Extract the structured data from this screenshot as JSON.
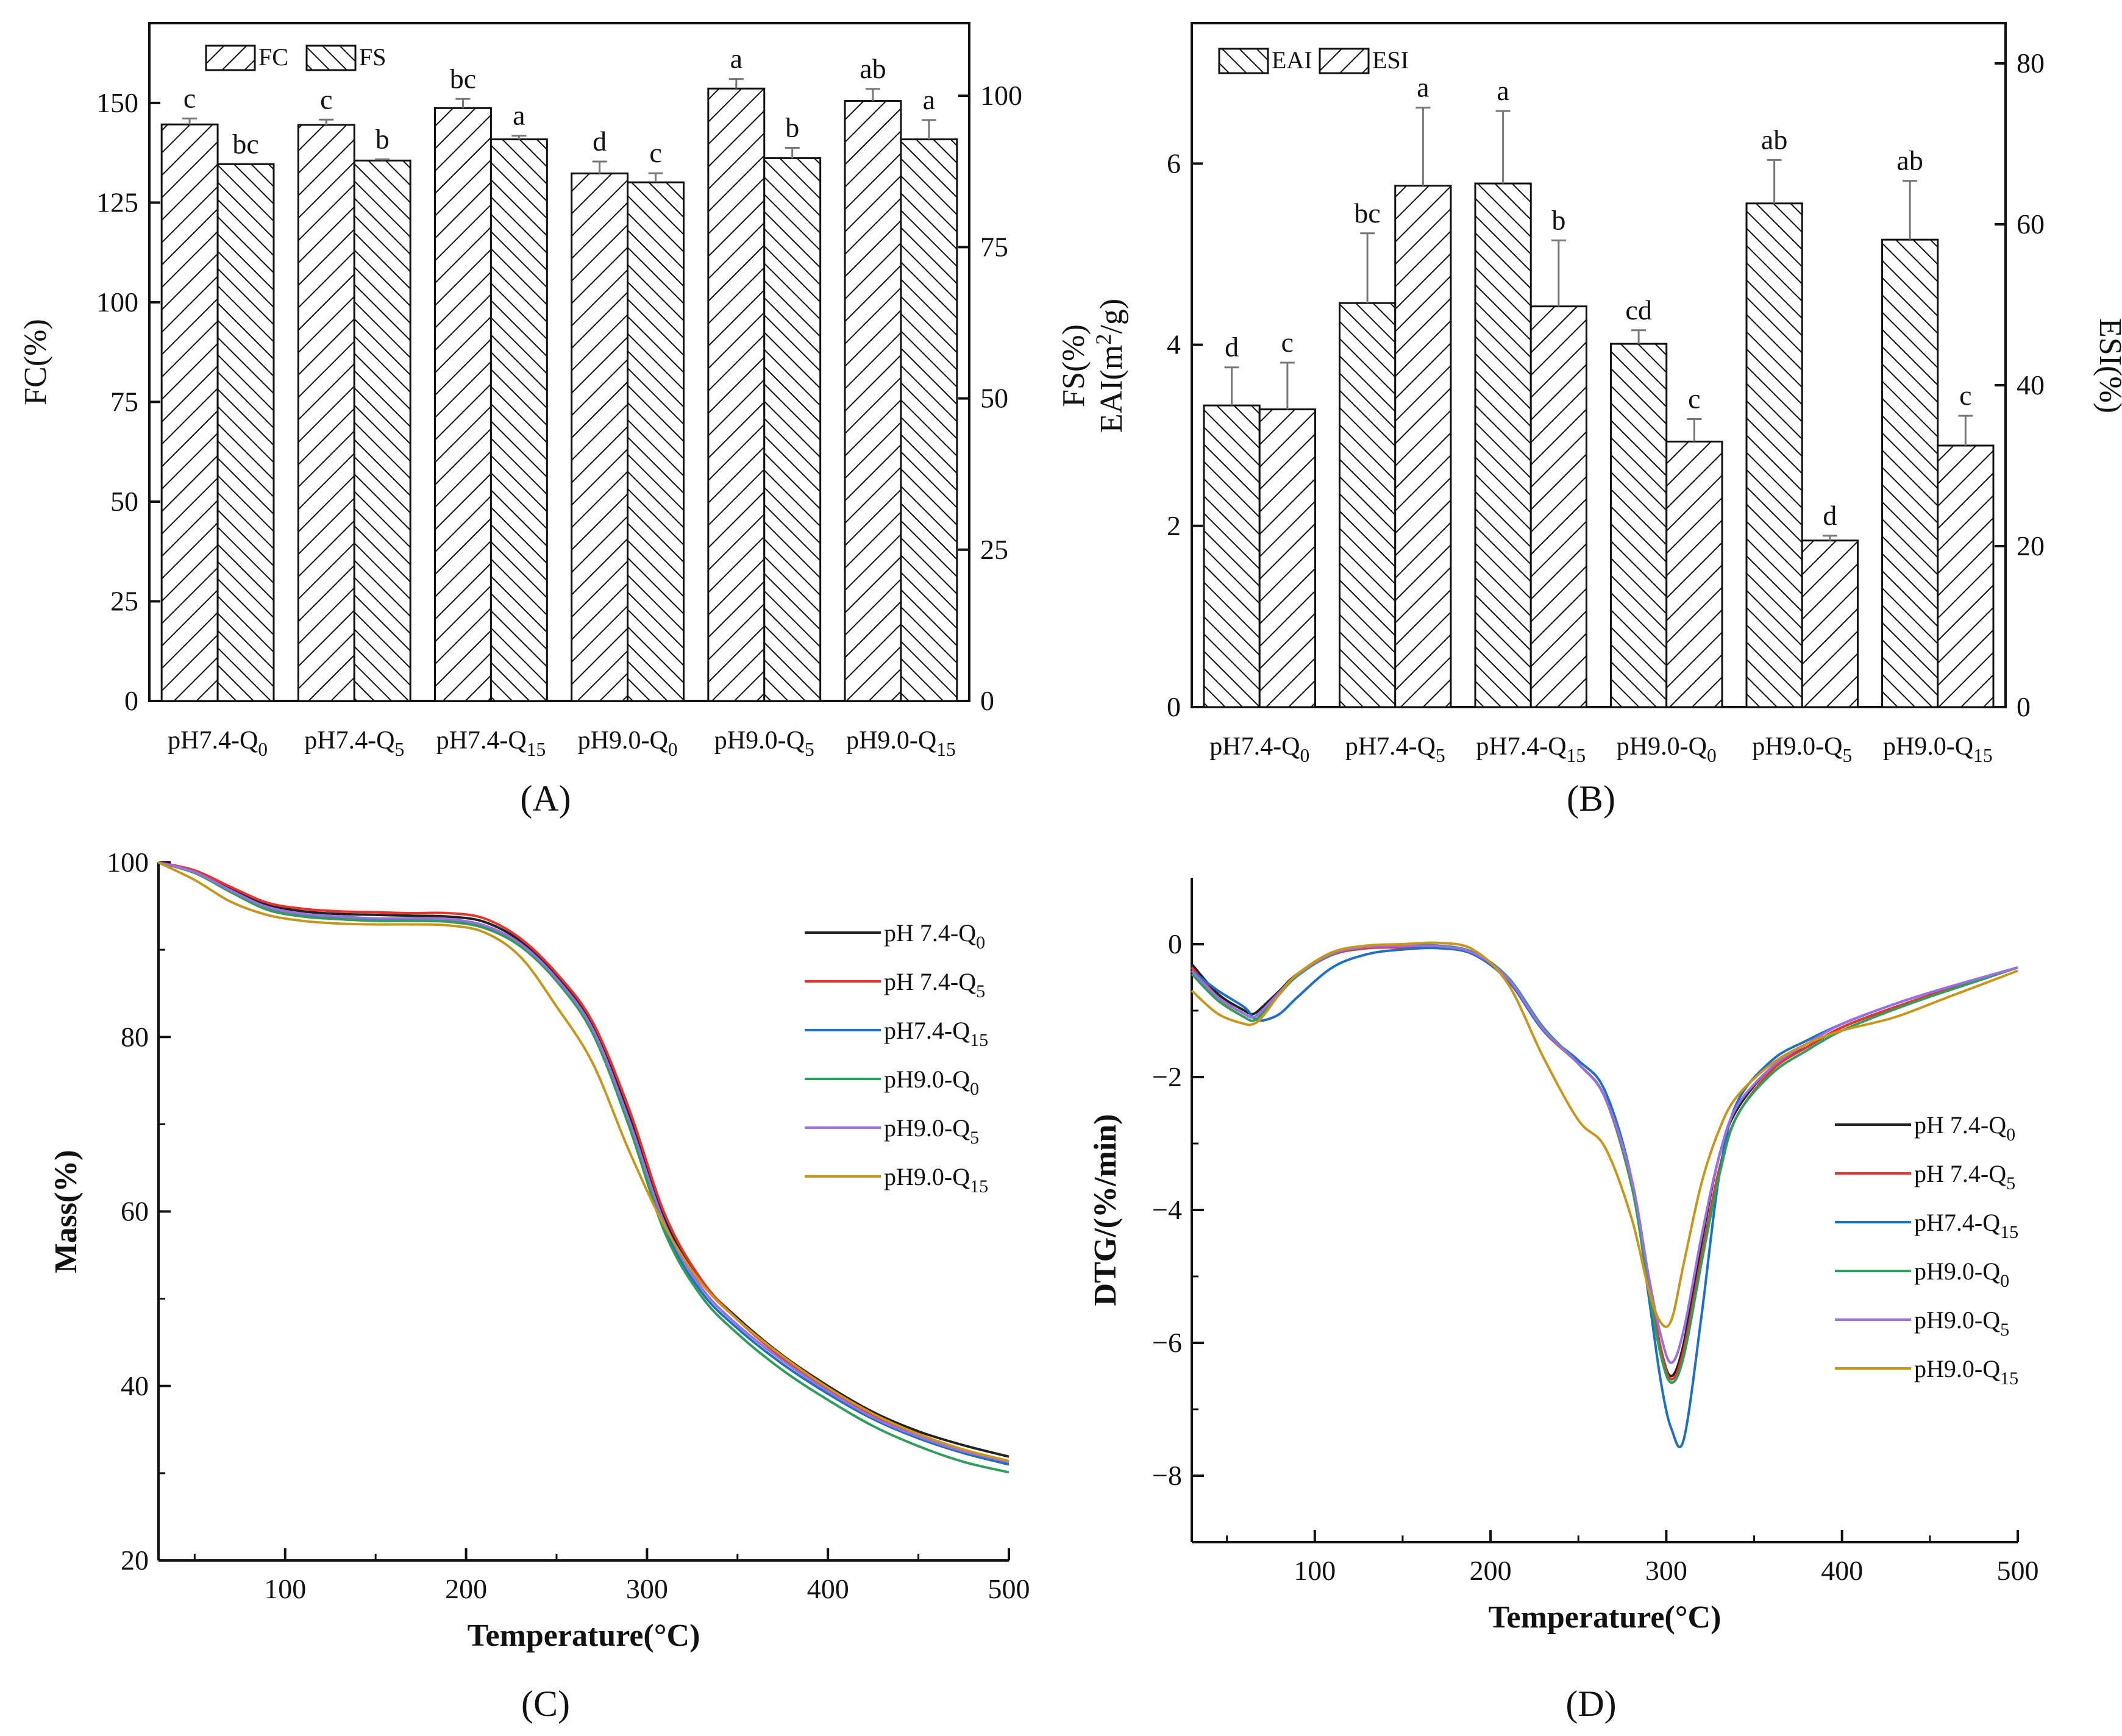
{
  "colors": {
    "series": [
      "#222222",
      "#e8322e",
      "#1f6fc2",
      "#2e9e5b",
      "#9b6fe0",
      "#c8961a"
    ],
    "axis": "#111111"
  },
  "panels": [
    {
      "label": "(A)"
    },
    {
      "label": "(B)"
    },
    {
      "label": "(C)"
    },
    {
      "label": "(D)"
    }
  ],
  "chart_data": [
    {
      "type": "bar",
      "panel": "A",
      "categories": [
        {
          "main": "pH7.4-Q",
          "sub": "0"
        },
        {
          "main": "pH7.4-Q",
          "sub": "5"
        },
        {
          "main": "pH7.4-Q",
          "sub": "15"
        },
        {
          "main": "pH9.0-Q",
          "sub": "0"
        },
        {
          "main": "pH9.0-Q",
          "sub": "5"
        },
        {
          "main": "pH9.0-Q",
          "sub": "15"
        }
      ],
      "ylabel_left": "FC(%)",
      "ylabel_right": "FS(%)",
      "ylim_left": [
        0,
        170
      ],
      "ylim_right": [
        0,
        112
      ],
      "yticks_left": [
        0,
        25,
        50,
        75,
        100,
        125,
        150
      ],
      "yticks_right": [
        0,
        25,
        50,
        75,
        100
      ],
      "legend": [
        "FC",
        "FS"
      ],
      "series": [
        {
          "name": "FC",
          "axis": "left",
          "hatch": "diag-up",
          "values": [
            144.6,
            144.5,
            148.7,
            132.3,
            153.6,
            150.5
          ],
          "errors": [
            1.5,
            1.3,
            2.3,
            3.0,
            2.4,
            3.0
          ],
          "letters": [
            "c",
            "c",
            "bc",
            "d",
            "a",
            "ab"
          ]
        },
        {
          "name": "FS",
          "axis": "right",
          "hatch": "diag-down",
          "values": [
            88.7,
            89.3,
            92.8,
            85.7,
            89.7,
            92.8
          ],
          "errors": [
            0.0,
            0.2,
            0.6,
            1.5,
            1.7,
            3.2
          ],
          "letters": [
            "bc",
            "b",
            "a",
            "c",
            "b",
            "a"
          ]
        }
      ]
    },
    {
      "type": "bar",
      "panel": "B",
      "categories": [
        {
          "main": "pH7.4-Q",
          "sub": "0"
        },
        {
          "main": "pH7.4-Q",
          "sub": "5"
        },
        {
          "main": "pH7.4-Q",
          "sub": "15"
        },
        {
          "main": "pH9.0-Q",
          "sub": "0"
        },
        {
          "main": "pH9.0-Q",
          "sub": "5"
        },
        {
          "main": "pH9.0-Q",
          "sub": "15"
        }
      ],
      "ylabel_left_line1": "FS(%)",
      "ylabel_left_line2_main": "EAI(m",
      "ylabel_left_line2_sup": "2",
      "ylabel_left_line2_end": "/g)",
      "ylabel_right": "ESI(%)",
      "ylim_left": [
        0,
        7.55
      ],
      "ylim_right": [
        0,
        85
      ],
      "yticks_left": [
        0,
        2,
        4,
        6
      ],
      "yticks_right": [
        0,
        20,
        40,
        60,
        80
      ],
      "legend": [
        "EAI",
        "ESI"
      ],
      "series": [
        {
          "name": "EAI",
          "axis": "left",
          "hatch": "diag-down",
          "values": [
            3.33,
            4.46,
            5.78,
            4.01,
            5.56,
            5.16
          ],
          "errors": [
            0.42,
            0.77,
            0.8,
            0.15,
            0.48,
            0.65
          ],
          "letters": [
            "d",
            "bc",
            "a",
            "cd",
            "ab",
            "ab"
          ]
        },
        {
          "name": "ESI",
          "axis": "right",
          "hatch": "diag-up",
          "values": [
            37.0,
            64.8,
            49.8,
            33.0,
            20.7,
            32.5
          ],
          "errors": [
            5.8,
            9.7,
            8.2,
            2.8,
            0.6,
            3.7
          ],
          "letters": [
            "c",
            "a",
            "b",
            "c",
            "d",
            "c"
          ]
        }
      ]
    },
    {
      "type": "line",
      "panel": "C",
      "xlabel": "Temperature(°C)",
      "ylabel": "Mass(%)",
      "xlim": [
        30,
        500
      ],
      "ylim": [
        20,
        100
      ],
      "xticks": [
        100,
        200,
        300,
        400,
        500
      ],
      "yticks": [
        20,
        40,
        60,
        80,
        100
      ],
      "legend": [
        {
          "main": "pH 7.4-Q",
          "sub": "0"
        },
        {
          "main": "pH 7.4-Q",
          "sub": "5"
        },
        {
          "main": "pH7.4-Q",
          "sub": "15"
        },
        {
          "main": "pH9.0-Q",
          "sub": "0"
        },
        {
          "main": "pH9.0-Q",
          "sub": "5"
        },
        {
          "main": "pH9.0-Q",
          "sub": "15"
        }
      ],
      "x": [
        30,
        50,
        70,
        90,
        110,
        130,
        150,
        170,
        190,
        210,
        230,
        250,
        270,
        290,
        310,
        330,
        350,
        375,
        400,
        425,
        450,
        475,
        500
      ],
      "series": [
        {
          "name": "pH 7.4-Q0",
          "y": [
            100,
            99,
            97,
            95.2,
            94.4,
            94.1,
            94.0,
            93.9,
            93.8,
            93.2,
            91.0,
            87.0,
            81.2,
            71.0,
            59.0,
            52.0,
            47.8,
            43.5,
            40.0,
            37.0,
            34.8,
            33.2,
            31.9
          ]
        },
        {
          "name": "pH 7.4-Q5",
          "y": [
            100,
            99.1,
            97.2,
            95.4,
            94.7,
            94.4,
            94.3,
            94.2,
            94.2,
            93.6,
            91.3,
            87.3,
            81.7,
            71.8,
            59.6,
            52.2,
            47.6,
            43.2,
            39.6,
            36.6,
            34.3,
            32.6,
            31.2
          ]
        },
        {
          "name": "pH7.4-Q15",
          "y": [
            100,
            98.9,
            96.7,
            94.8,
            94.0,
            93.6,
            93.4,
            93.4,
            93.3,
            92.6,
            90.5,
            86.5,
            80.6,
            70.0,
            57.9,
            50.8,
            46.6,
            42.5,
            39.1,
            36.2,
            34.0,
            32.3,
            31.0
          ]
        },
        {
          "name": "pH9.0-Q0",
          "y": [
            100,
            98.8,
            96.6,
            94.6,
            93.8,
            93.5,
            93.3,
            93.3,
            93.2,
            92.5,
            90.4,
            86.4,
            80.4,
            69.8,
            57.5,
            50.3,
            46.0,
            41.8,
            38.4,
            35.4,
            33.1,
            31.3,
            30.1
          ]
        },
        {
          "name": "pH9.0-Q5",
          "y": [
            100,
            98.9,
            96.8,
            94.9,
            94.1,
            93.8,
            93.6,
            93.6,
            93.5,
            92.8,
            90.7,
            86.7,
            80.9,
            70.5,
            58.5,
            51.3,
            47.0,
            42.9,
            39.4,
            36.4,
            34.2,
            32.5,
            31.3
          ]
        },
        {
          "name": "pH9.0-Q15",
          "y": [
            100,
            98.0,
            95.5,
            94.0,
            93.3,
            93.0,
            92.9,
            92.9,
            92.8,
            92.0,
            89.2,
            83.5,
            77.0,
            67.0,
            58.2,
            51.8,
            47.6,
            43.4,
            39.8,
            36.8,
            34.5,
            32.7,
            31.4
          ]
        }
      ]
    },
    {
      "type": "line",
      "panel": "D",
      "xlabel": "Temperature(°C)",
      "ylabel": "DTG/(%/min)",
      "xlim": [
        30,
        500
      ],
      "ylim": [
        -9,
        1
      ],
      "xticks": [
        100,
        200,
        300,
        400,
        500
      ],
      "yticks": [
        -8,
        -6,
        -4,
        -2,
        0
      ],
      "legend": [
        {
          "main": "pH 7.4-Q",
          "sub": "0"
        },
        {
          "main": "pH 7.4-Q",
          "sub": "5"
        },
        {
          "main": "pH7.4-Q",
          "sub": "15"
        },
        {
          "main": "pH9.0-Q",
          "sub": "0"
        },
        {
          "main": "pH9.0-Q",
          "sub": "5"
        },
        {
          "main": "pH9.0-Q",
          "sub": "15"
        }
      ],
      "x": [
        30,
        45,
        60,
        65,
        70,
        80,
        90,
        110,
        130,
        150,
        170,
        190,
        210,
        230,
        250,
        265,
        280,
        290,
        297,
        303,
        310,
        320,
        330,
        340,
        360,
        380,
        400,
        430,
        460,
        500
      ],
      "series": [
        {
          "name": "pH 7.4-Q0",
          "y": [
            -0.3,
            -0.75,
            -1.0,
            -1.05,
            -0.95,
            -0.7,
            -0.45,
            -0.15,
            -0.05,
            -0.05,
            -0.05,
            -0.15,
            -0.55,
            -1.3,
            -1.8,
            -2.3,
            -3.6,
            -5.1,
            -6.1,
            -6.5,
            -6.0,
            -4.5,
            -3.2,
            -2.5,
            -1.85,
            -1.55,
            -1.25,
            -0.95,
            -0.7,
            -0.35
          ]
        },
        {
          "name": "pH 7.4-Q5",
          "y": [
            -0.35,
            -0.8,
            -1.05,
            -1.1,
            -1.0,
            -0.72,
            -0.47,
            -0.16,
            -0.06,
            -0.05,
            -0.05,
            -0.15,
            -0.55,
            -1.3,
            -1.8,
            -2.3,
            -3.6,
            -5.1,
            -6.1,
            -6.55,
            -6.1,
            -4.7,
            -3.4,
            -2.6,
            -1.9,
            -1.55,
            -1.25,
            -0.95,
            -0.68,
            -0.35
          ]
        },
        {
          "name": "pH7.4-Q15",
          "y": [
            -0.4,
            -0.7,
            -0.95,
            -1.1,
            -1.15,
            -1.05,
            -0.8,
            -0.35,
            -0.15,
            -0.08,
            -0.06,
            -0.15,
            -0.55,
            -1.3,
            -1.75,
            -2.2,
            -3.5,
            -5.3,
            -6.6,
            -7.3,
            -7.45,
            -5.6,
            -3.5,
            -2.4,
            -1.75,
            -1.45,
            -1.2,
            -0.9,
            -0.65,
            -0.35
          ]
        },
        {
          "name": "pH9.0-Q0",
          "y": [
            -0.45,
            -0.85,
            -1.1,
            -1.15,
            -1.05,
            -0.75,
            -0.48,
            -0.15,
            -0.04,
            -0.02,
            -0.02,
            -0.12,
            -0.5,
            -1.25,
            -1.8,
            -2.3,
            -3.6,
            -5.2,
            -6.2,
            -6.6,
            -6.2,
            -4.8,
            -3.5,
            -2.6,
            -1.95,
            -1.6,
            -1.3,
            -0.98,
            -0.7,
            -0.35
          ]
        },
        {
          "name": "pH9.0-Q5",
          "y": [
            -0.4,
            -0.8,
            -1.05,
            -1.1,
            -1.0,
            -0.72,
            -0.46,
            -0.14,
            -0.04,
            -0.03,
            -0.03,
            -0.13,
            -0.52,
            -1.28,
            -1.8,
            -2.3,
            -3.5,
            -5.0,
            -5.9,
            -6.3,
            -5.8,
            -4.4,
            -3.2,
            -2.45,
            -1.85,
            -1.5,
            -1.2,
            -0.9,
            -0.65,
            -0.35
          ]
        },
        {
          "name": "pH9.0-Q15",
          "y": [
            -0.7,
            -1.05,
            -1.2,
            -1.2,
            -1.1,
            -0.75,
            -0.45,
            -0.12,
            -0.02,
            0.0,
            0.02,
            -0.08,
            -0.6,
            -1.7,
            -2.65,
            -3.05,
            -4.1,
            -5.2,
            -5.7,
            -5.65,
            -4.8,
            -3.6,
            -2.8,
            -2.3,
            -1.8,
            -1.5,
            -1.3,
            -1.1,
            -0.8,
            -0.4
          ]
        }
      ]
    }
  ]
}
